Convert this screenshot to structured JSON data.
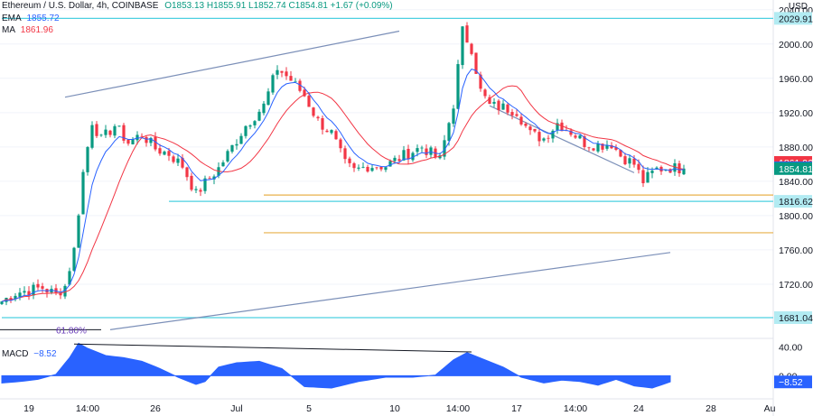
{
  "header": {
    "symbol": "Ethereum / U.S. Dollar, 4h, COINBASE",
    "ohlc": "O1853.13 H1855.91 L1852.74 C1854.81 +1.67 (+0.09%)",
    "ema_label": "EMA",
    "ema_value": "1855.72",
    "ma_label": "MA",
    "ma_value": "1861.96",
    "currency": "USD"
  },
  "macd": {
    "label": "MACD",
    "value": "−8.52"
  },
  "chart_data": {
    "type": "candlestick",
    "symbol": "ETH/USD",
    "timeframe": "4h",
    "exchange": "COINBASE",
    "ylim": [
      1660,
      2045
    ],
    "y_ticks": [
      "2040.00",
      "2000.00",
      "1960.00",
      "1920.00",
      "1880.00",
      "1840.00",
      "1800.00",
      "1760.00",
      "1720.00"
    ],
    "y_tick_values": [
      2040,
      2000,
      1960,
      1920,
      1880,
      1840,
      1800,
      1760,
      1720
    ],
    "x_ticks": [
      "19",
      "14:00",
      "26",
      "Jul",
      "5",
      "10",
      "14:00",
      "17",
      "14:00",
      "24",
      "28",
      "Au"
    ],
    "x_tick_index": [
      6,
      19,
      34,
      52,
      68,
      87,
      101,
      114,
      127,
      141,
      157,
      170
    ],
    "n_bars": 152,
    "close_path_points": [
      [
        0,
        1700
      ],
      [
        3,
        1710
      ],
      [
        6,
        1713
      ],
      [
        9,
        1716
      ],
      [
        12,
        1708
      ],
      [
        14,
        1718
      ],
      [
        16,
        1760
      ],
      [
        18,
        1850
      ],
      [
        20,
        1910
      ],
      [
        22,
        1888
      ],
      [
        25,
        1905
      ],
      [
        28,
        1885
      ],
      [
        31,
        1895
      ],
      [
        34,
        1878
      ],
      [
        37,
        1872
      ],
      [
        40,
        1858
      ],
      [
        43,
        1825
      ],
      [
        45,
        1838
      ],
      [
        48,
        1855
      ],
      [
        51,
        1880
      ],
      [
        54,
        1905
      ],
      [
        58,
        1928
      ],
      [
        61,
        1972
      ],
      [
        64,
        1958
      ],
      [
        67,
        1940
      ],
      [
        70,
        1910
      ],
      [
        73,
        1896
      ],
      [
        76,
        1860
      ],
      [
        78,
        1852
      ],
      [
        81,
        1858
      ],
      [
        85,
        1858
      ],
      [
        89,
        1870
      ],
      [
        93,
        1880
      ],
      [
        97,
        1865
      ],
      [
        100,
        1930
      ],
      [
        102,
        2015
      ],
      [
        104,
        1995
      ],
      [
        106,
        1945
      ],
      [
        108,
        1928
      ],
      [
        111,
        1926
      ],
      [
        114,
        1922
      ],
      [
        117,
        1895
      ],
      [
        120,
        1890
      ],
      [
        123,
        1908
      ],
      [
        126,
        1898
      ],
      [
        129,
        1885
      ],
      [
        132,
        1882
      ],
      [
        135,
        1884
      ],
      [
        137,
        1870
      ],
      [
        140,
        1860
      ],
      [
        142,
        1840
      ],
      [
        145,
        1854
      ],
      [
        148,
        1856
      ],
      [
        151,
        1854.81
      ]
    ],
    "ema": {
      "name": "EMA",
      "last": 1855.72,
      "color": "#2962ff"
    },
    "ma": {
      "name": "MA",
      "last": 1861.96,
      "color": "#f23645"
    },
    "price_labels": [
      {
        "text": "2029.91",
        "value": 2029.91,
        "bg": "#b2ebf2",
        "fg": "#131722"
      },
      {
        "text": "1861.96",
        "value": 1861.96,
        "bg": "#f23645",
        "fg": "#ffffff"
      },
      {
        "text": "1855.72",
        "value": 1855.72,
        "bg": "#2962ff",
        "fg": "#ffffff"
      },
      {
        "text": "1854.81",
        "value": 1854.81,
        "bg": "#089981",
        "fg": "#ffffff"
      },
      {
        "text": "1816.62",
        "value": 1816.62,
        "bg": "#b2ebf2",
        "fg": "#131722"
      },
      {
        "text": "1681.04",
        "value": 1681.04,
        "bg": "#b2ebf2",
        "fg": "#131722"
      }
    ],
    "horizontal_lines": [
      {
        "value": 2029.91,
        "from": 0,
        "color": "#4dd0e1"
      },
      {
        "value": 1816.62,
        "from": 37,
        "color": "#4dd0e1"
      },
      {
        "value": 1681.04,
        "from": 0,
        "color": "#4dd0e1"
      },
      {
        "value": 1824,
        "from": 58,
        "color": "#e8b04a"
      },
      {
        "value": 1780,
        "from": 58,
        "color": "#e8b04a"
      }
    ],
    "trendlines": [
      {
        "from": [
          14,
          1938
        ],
        "to": [
          88,
          2015
        ],
        "color": "#7b8fb8"
      },
      {
        "from": [
          108,
          1928
        ],
        "to": [
          140,
          1850
        ],
        "color": "#7b8fb8"
      },
      {
        "from": [
          24,
          1667
        ],
        "to": [
          148,
          1757
        ],
        "color": "#7b8fb8"
      }
    ],
    "fib_label": "61.80%",
    "fib_value": 1667,
    "macd": {
      "name": "MACD",
      "last": -8.52,
      "ticks": [
        "40.00",
        "0.00"
      ],
      "tick_values": [
        40,
        0
      ],
      "ylim": [
        -27,
        48
      ],
      "path_points": [
        [
          0,
          -10
        ],
        [
          4,
          -8
        ],
        [
          8,
          -5
        ],
        [
          12,
          2
        ],
        [
          15,
          25
        ],
        [
          17,
          45
        ],
        [
          19,
          38
        ],
        [
          23,
          28
        ],
        [
          27,
          25
        ],
        [
          31,
          20
        ],
        [
          35,
          10
        ],
        [
          39,
          -2
        ],
        [
          43,
          -12
        ],
        [
          45,
          -8
        ],
        [
          48,
          12
        ],
        [
          52,
          18
        ],
        [
          57,
          20
        ],
        [
          62,
          10
        ],
        [
          67,
          -15
        ],
        [
          73,
          -17
        ],
        [
          79,
          -8
        ],
        [
          85,
          -2
        ],
        [
          91,
          -2
        ],
        [
          96,
          1
        ],
        [
          100,
          22
        ],
        [
          103,
          32
        ],
        [
          107,
          22
        ],
        [
          111,
          12
        ],
        [
          115,
          -2
        ],
        [
          120,
          -10
        ],
        [
          124,
          -6
        ],
        [
          128,
          -8
        ],
        [
          132,
          -13
        ],
        [
          136,
          -5
        ],
        [
          140,
          -14
        ],
        [
          144,
          -17
        ],
        [
          148,
          -8.52
        ]
      ],
      "trendline": {
        "from": [
          16,
          44
        ],
        "to": [
          104,
          33
        ]
      },
      "color": "#2962ff"
    }
  }
}
